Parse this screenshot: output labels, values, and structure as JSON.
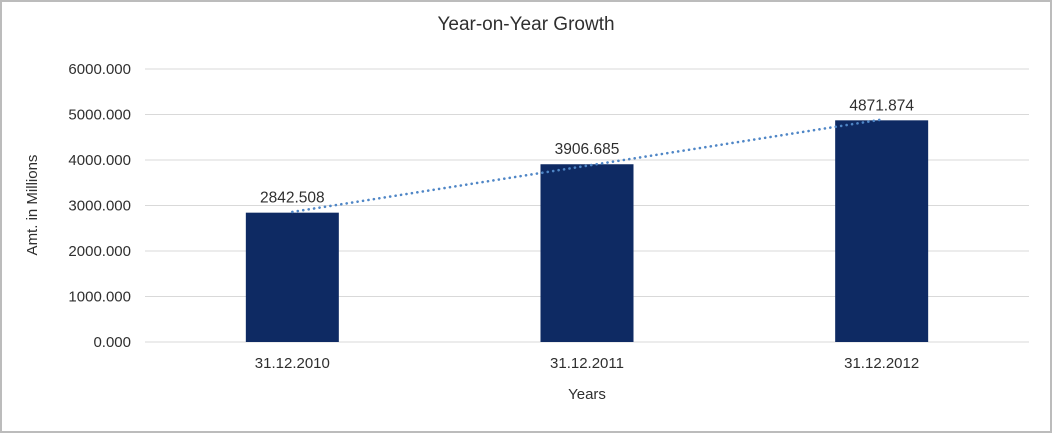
{
  "chart_data": {
    "type": "bar",
    "title": "Year-on-Year Growth",
    "xlabel": "Years",
    "ylabel": "Amt. in Millions",
    "categories": [
      "31.12.2010",
      "31.12.2011",
      "31.12.2012"
    ],
    "values": [
      2842.508,
      3906.685,
      4871.874
    ],
    "data_labels": [
      "2842.508",
      "3906.685",
      "4871.874"
    ],
    "ylim": [
      0,
      6000
    ],
    "ytick_interval": 1000,
    "ytick_labels": [
      "0.000",
      "1000.000",
      "2000.000",
      "3000.000",
      "4000.000",
      "5000.000",
      "6000.000"
    ],
    "grid": true,
    "legend": "none",
    "trendline": {
      "kind": "linear",
      "style": "dotted",
      "color": "#4f86c6"
    },
    "colors": {
      "bar": "#0e2a63",
      "gridline": "#d9d9d9",
      "text": "#2f2f2f",
      "border": "#bcbcbc",
      "background": "#ffffff"
    }
  }
}
